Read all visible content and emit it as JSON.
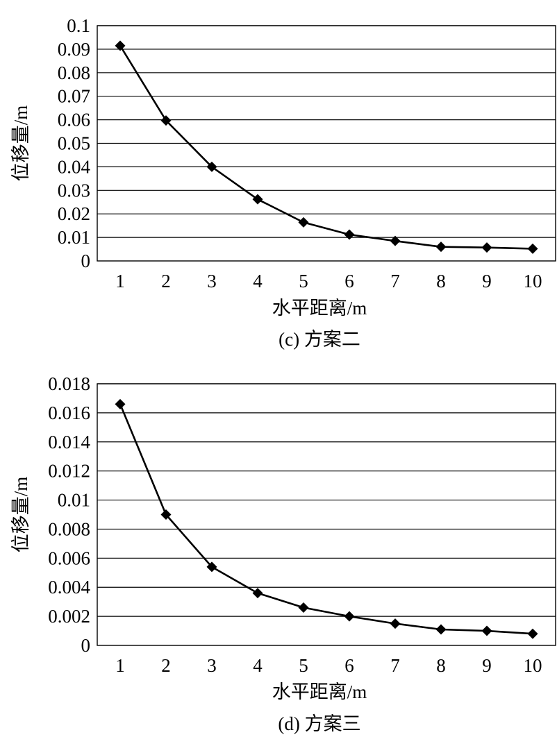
{
  "chart_data": [
    {
      "type": "line",
      "caption": "(c) 方案二",
      "xlabel": "水平距离/m",
      "ylabel": "位移量/m",
      "categories": [
        "1",
        "2",
        "3",
        "4",
        "5",
        "6",
        "7",
        "8",
        "9",
        "10"
      ],
      "series": [
        {
          "values": [
            0.0915,
            0.0597,
            0.04,
            0.0262,
            0.0164,
            0.0112,
            0.0085,
            0.006,
            0.0057,
            0.0052
          ]
        }
      ],
      "ylim": [
        0,
        0.1
      ],
      "yticks": [
        "0",
        "0.01",
        "0.02",
        "0.03",
        "0.04",
        "0.05",
        "0.06",
        "0.07",
        "0.08",
        "0.09",
        "0.1"
      ],
      "grid": true,
      "marker": "diamond",
      "line_color": "#000000"
    },
    {
      "type": "line",
      "caption": "(d) 方案三",
      "xlabel": "水平距离/m",
      "ylabel": "位移量/m",
      "categories": [
        "1",
        "2",
        "3",
        "4",
        "5",
        "6",
        "7",
        "8",
        "9",
        "10"
      ],
      "series": [
        {
          "values": [
            0.0166,
            0.009,
            0.0054,
            0.0036,
            0.0026,
            0.002,
            0.0015,
            0.0011,
            0.001,
            0.0008
          ]
        }
      ],
      "ylim": [
        0,
        0.018
      ],
      "yticks": [
        "0",
        "0.002",
        "0.004",
        "0.006",
        "0.008",
        "0.01",
        "0.012",
        "0.014",
        "0.016",
        "0.018"
      ],
      "grid": true,
      "marker": "diamond",
      "line_color": "#000000"
    }
  ]
}
